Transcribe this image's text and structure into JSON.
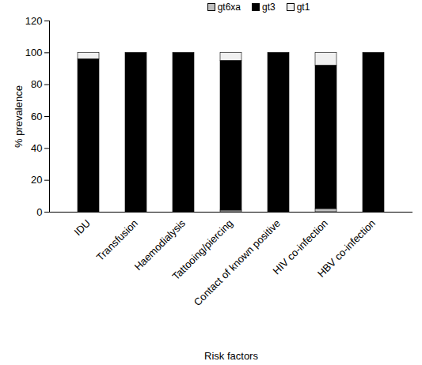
{
  "chart_data": {
    "type": "bar",
    "stacked": true,
    "legend": "top",
    "xlabel": "Risk factors",
    "ylabel": "% prevalence",
    "categories": [
      "IDU",
      "Transfusion",
      "Haemodialysis",
      "Tattooing/piercing",
      "Contact of known positive",
      "HIV co-infection",
      "HBV co-infection"
    ],
    "series": [
      {
        "name": "gt6xa",
        "color": "#bfbfbf",
        "values": [
          0,
          0,
          0,
          1,
          0,
          2,
          0
        ]
      },
      {
        "name": "gt3",
        "color": "#000000",
        "values": [
          96,
          100,
          100,
          94,
          100,
          90,
          100
        ]
      },
      {
        "name": "gt1",
        "color": "#f0f0f0",
        "values": [
          4,
          0,
          0,
          5,
          0,
          8,
          0
        ]
      }
    ],
    "ylim": [
      0,
      120
    ],
    "yticks": [
      0,
      20,
      40,
      60,
      80,
      100,
      120
    ],
    "grid": false
  }
}
